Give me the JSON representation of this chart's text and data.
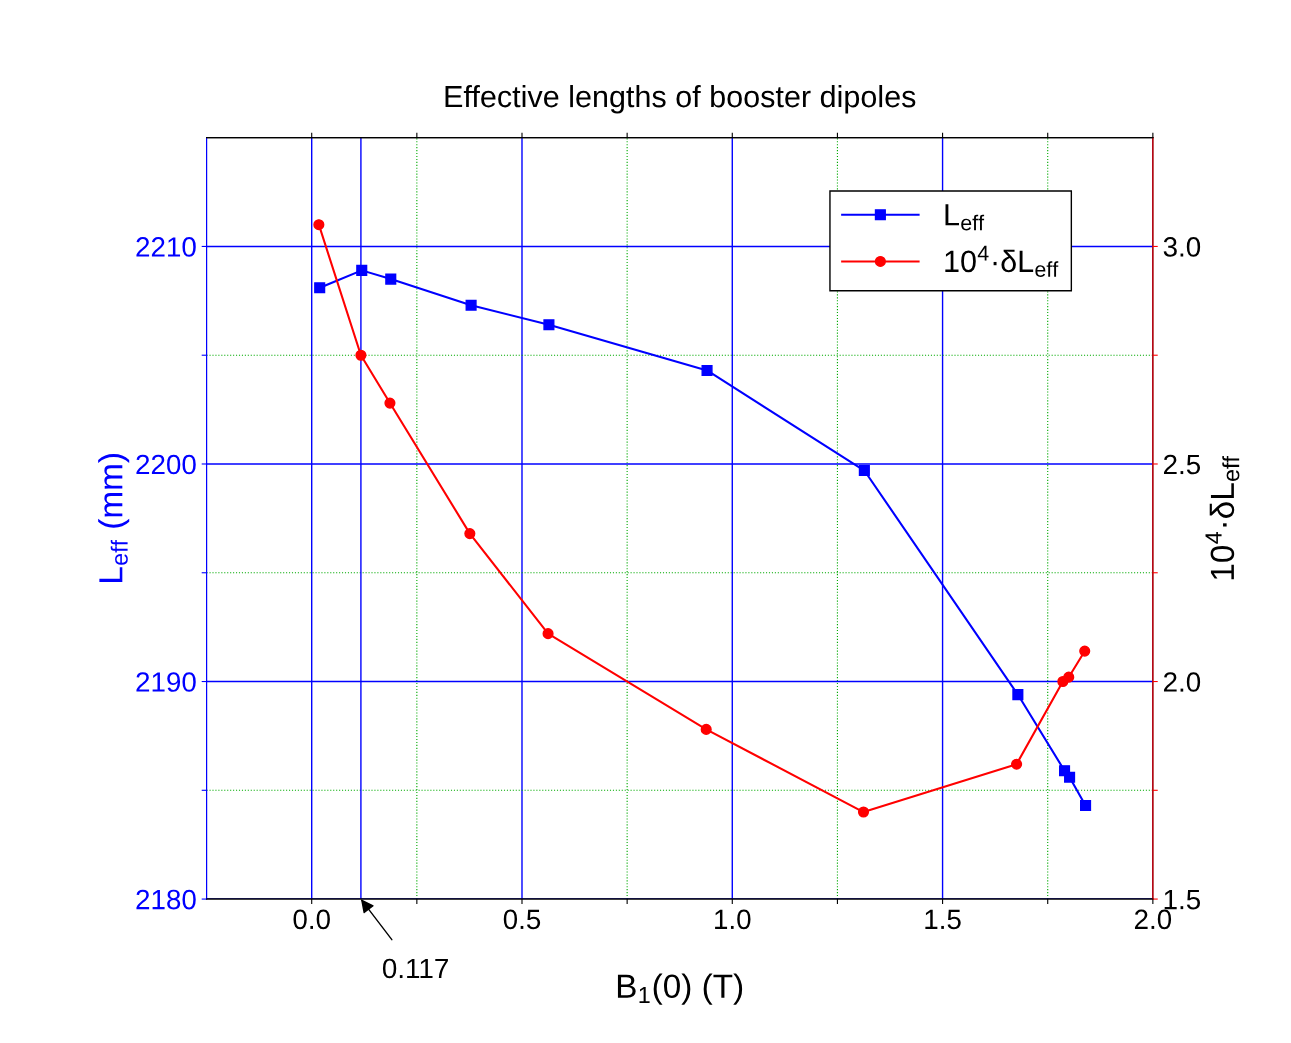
{
  "chart_data": {
    "type": "line",
    "title": "Effective lengths of booster dipoles",
    "xlabel": "B$_{1}$(0) (T)",
    "ylabel": "L$_{eff}$ (mm)",
    "y2label": "10$^{4}$·δL$_{eff}$",
    "xlim": [
      -0.25,
      2.0
    ],
    "xticks": [
      {
        "value": 0,
        "label": "0.0"
      },
      {
        "value": 0.25,
        "label": null
      },
      0.5,
      {
        "value": 0.75,
        "label": null
      },
      {
        "value": 1,
        "label": "1.0"
      },
      {
        "value": 1.25,
        "label": null
      },
      1.5,
      {
        "value": 1.75,
        "label": null
      },
      {
        "value": 2,
        "label": "2.0"
      }
    ],
    "ylim": [
      2180,
      2215
    ],
    "yticks": [
      2180,
      {
        "value": 2185,
        "label": null
      },
      2190,
      {
        "value": 2195,
        "label": null
      },
      2200,
      {
        "value": 2205,
        "label": null
      },
      2210
    ],
    "y2lim": [
      1.5,
      3.25
    ],
    "y2ticks": [
      1.5,
      {
        "value": 1.75,
        "label": null
      },
      {
        "value": 2,
        "label": "2.0"
      },
      {
        "value": 2.25,
        "label": null
      },
      2.5,
      {
        "value": 2.75,
        "label": null
      },
      {
        "value": 3,
        "label": "3.0"
      }
    ],
    "grid": true,
    "legend": "top right",
    "ref_lines": [
      {
        "axis": "x",
        "value": 0.117,
        "color": "#0000ff",
        "line_style": "solid"
      }
    ],
    "annotations": [
      {
        "text": "0.117",
        "x": 0.117,
        "y": 2180
      }
    ],
    "series": [
      {
        "name": "L$_{eff}$",
        "color": "#0000ff",
        "marker": "square",
        "x": [
          0.019,
          0.119,
          0.188,
          0.379,
          0.564,
          0.94,
          1.314,
          1.679,
          1.79,
          1.802,
          1.84
        ],
        "values": [
          2208.1,
          2208.9,
          2208.5,
          2207.3,
          2206.4,
          2204.3,
          2199.7,
          2189.4,
          2185.9,
          2185.6,
          2184.3
        ]
      },
      {
        "name": "10$^{4}$·δL$_{eff}$",
        "color": "#ff0000",
        "marker": "circle",
        "axis": "y2",
        "x": [
          0.017,
          0.117,
          0.186,
          0.376,
          0.562,
          0.938,
          1.312,
          1.676,
          1.786,
          1.8,
          1.838
        ],
        "values": [
          3.05,
          2.75,
          2.64,
          2.34,
          2.11,
          1.89,
          1.7,
          1.81,
          2.0,
          2.01,
          2.07
        ]
      }
    ]
  }
}
